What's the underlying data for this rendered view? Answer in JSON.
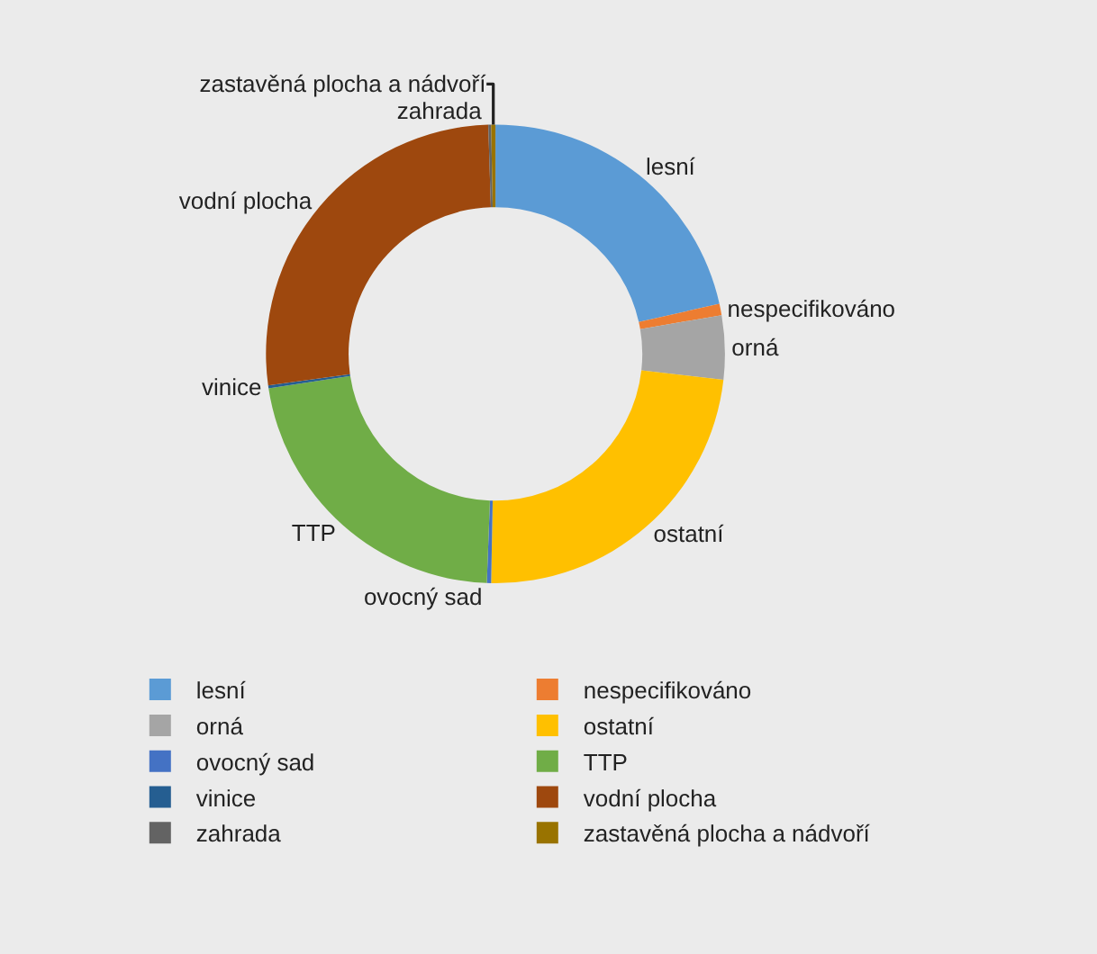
{
  "chart_data": {
    "type": "donut",
    "categories": [
      "lesní",
      "nespecifikováno",
      "orná",
      "ostatní",
      "ovocný sad",
      "TTP",
      "vinice",
      "vodní plocha",
      "zahrada",
      "zastavěná plocha a nádvoří"
    ],
    "values": [
      21.5,
      0.8,
      4.5,
      23.5,
      0.3,
      22,
      0.2,
      26.7,
      0.2,
      0.3
    ],
    "colors": [
      "#5b9bd5",
      "#ed7d31",
      "#a5a5a5",
      "#ffc000",
      "#4472c4",
      "#70ad47",
      "#255e91",
      "#9e480e",
      "#636363",
      "#997300"
    ],
    "legend": "bottom"
  }
}
